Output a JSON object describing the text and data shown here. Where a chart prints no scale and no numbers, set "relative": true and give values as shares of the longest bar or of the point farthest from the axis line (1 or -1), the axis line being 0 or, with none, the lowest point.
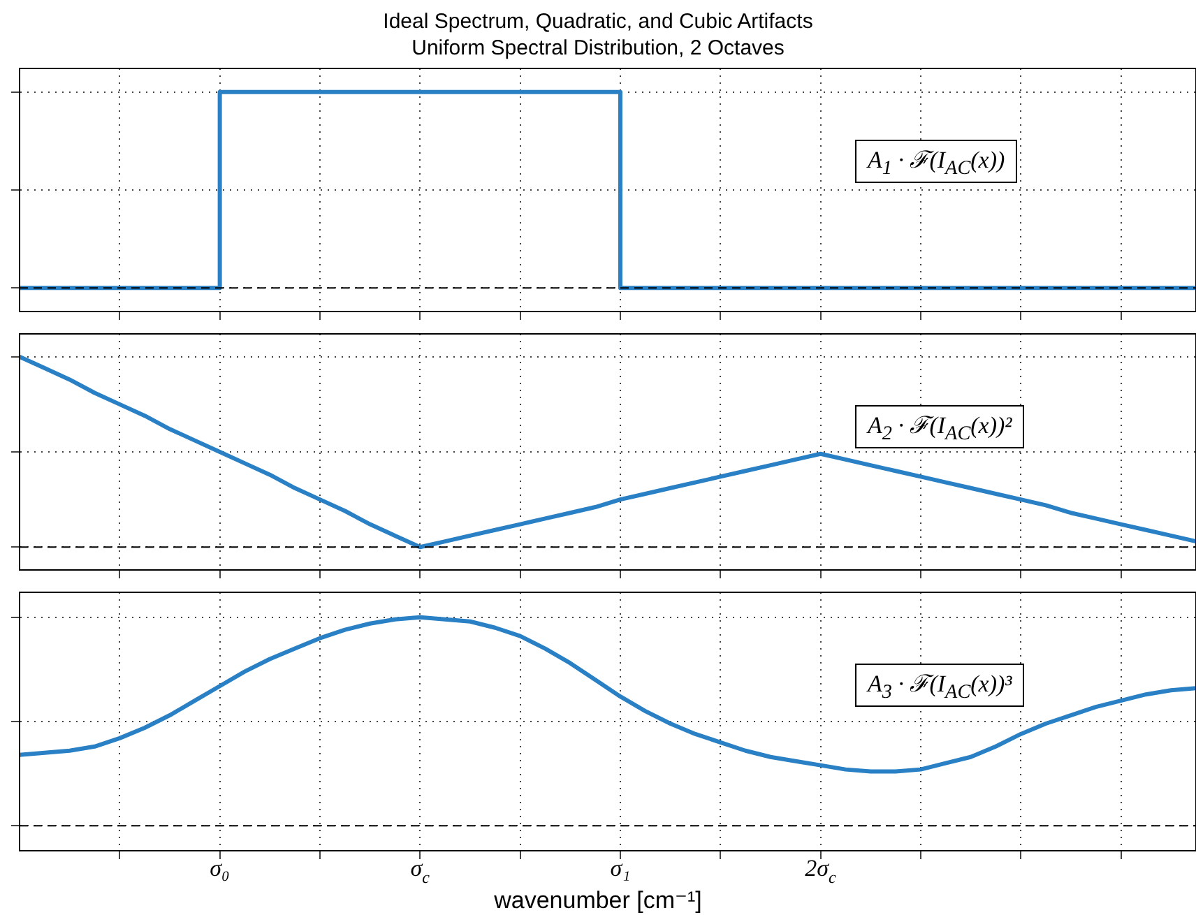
{
  "chart_data": [
    {
      "type": "step",
      "title": "Ideal Spectrum, Quadratic, and Cubic Artifacts",
      "subtitle": "Uniform Spectral Distribution, 2 Octaves",
      "relative": true,
      "categories": [
        null,
        null,
        null,
        null,
        null,
        null,
        null,
        null,
        null,
        null,
        null,
        null,
        null,
        null,
        null,
        null,
        null,
        null,
        null,
        null,
        null,
        null,
        null,
        null,
        null,
        null,
        null,
        null,
        null,
        null,
        null,
        null,
        null,
        null,
        null,
        null,
        null,
        null,
        null,
        null,
        null,
        null,
        null,
        null,
        null,
        null,
        null,
        null
      ],
      "grid": true,
      "tick_labels": false,
      "annotations": [
        "A$_{1}$ · ℱ(I$_{AC}$(x))"
      ],
      "ref_lines": [
        {
          "axis": "y",
          "value": 0,
          "color": "#000000",
          "line_style": "dashed"
        }
      ],
      "series": [
        {
          "color": "#2a80c4",
          "values": [
            0,
            0,
            0,
            0,
            0,
            0,
            0,
            0,
            1,
            1,
            1,
            1,
            1,
            1,
            1,
            1,
            1,
            1,
            1,
            1,
            1,
            1,
            1,
            1,
            0,
            0,
            0,
            0,
            0,
            0,
            0,
            0,
            0,
            0,
            0,
            0,
            0,
            0,
            0,
            0,
            0,
            0,
            0,
            0,
            0,
            0,
            0,
            0
          ]
        }
      ]
    },
    {
      "type": "line",
      "relative": true,
      "categories": [
        null,
        null,
        null,
        null,
        null,
        null,
        null,
        null,
        null,
        null,
        null,
        null,
        null,
        null,
        null,
        null,
        null,
        null,
        null,
        null,
        null,
        null,
        null,
        null,
        null,
        null,
        null,
        null,
        null,
        null,
        null,
        null,
        null,
        null,
        null,
        null,
        null,
        null,
        null,
        null,
        null,
        null,
        null,
        null,
        null,
        null,
        null,
        null
      ],
      "grid": true,
      "tick_labels": false,
      "annotations": [
        "A$_{2}$ · ℱ(I$_{AC}$(x))²"
      ],
      "ref_lines": [
        {
          "axis": "y",
          "value": 0,
          "color": "#000000",
          "line_style": "dashed"
        }
      ],
      "series": [
        {
          "color": "#2a80c4",
          "values": [
            1,
            0.94,
            0.88,
            0.81,
            0.75,
            0.69,
            0.62,
            0.56,
            0.5,
            0.44,
            0.38,
            0.31,
            0.25,
            0.19,
            0.12,
            0.06,
            0,
            0.03,
            0.06,
            0.09,
            0.12,
            0.15,
            0.18,
            0.21,
            0.25,
            0.28,
            0.31,
            0.34,
            0.37,
            0.4,
            0.43,
            0.46,
            0.49,
            0.46,
            0.43,
            0.4,
            0.37,
            0.34,
            0.31,
            0.28,
            0.25,
            0.22,
            0.18,
            0.15,
            0.12,
            0.09,
            0.06,
            0.03
          ]
        }
      ]
    },
    {
      "type": "line",
      "xlabel": "wavenumber [cm⁻¹]",
      "relative": true,
      "categories": [
        null,
        null,
        null,
        null,
        null,
        null,
        null,
        null,
        "σ₀",
        null,
        null,
        null,
        null,
        null,
        null,
        null,
        "σ$_{c}$",
        null,
        null,
        null,
        null,
        null,
        null,
        null,
        "σ₁",
        null,
        null,
        null,
        null,
        null,
        null,
        null,
        "2σ$_{c}$",
        null,
        null,
        null,
        null,
        null,
        null,
        null,
        null,
        null,
        null,
        null,
        null,
        null,
        null,
        null
      ],
      "grid": true,
      "tick_labels": "x",
      "annotations": [
        "A$_{3}$ · ℱ(I$_{AC}$(x))³"
      ],
      "ref_lines": [
        {
          "axis": "y",
          "value": 0,
          "color": "#000000",
          "line_style": "dashed"
        }
      ],
      "series": [
        {
          "color": "#2a80c4",
          "values": [
            0.34,
            0.35,
            0.36,
            0.38,
            0.42,
            0.47,
            0.53,
            0.6,
            0.67,
            0.74,
            0.8,
            0.85,
            0.9,
            0.94,
            0.97,
            0.99,
            1,
            0.99,
            0.98,
            0.95,
            0.91,
            0.85,
            0.78,
            0.7,
            0.62,
            0.55,
            0.49,
            0.44,
            0.4,
            0.36,
            0.33,
            0.31,
            0.29,
            0.27,
            0.26,
            0.26,
            0.27,
            0.3,
            0.33,
            0.38,
            0.44,
            0.49,
            0.53,
            0.57,
            0.6,
            0.63,
            0.65,
            0.66
          ]
        }
      ]
    }
  ]
}
